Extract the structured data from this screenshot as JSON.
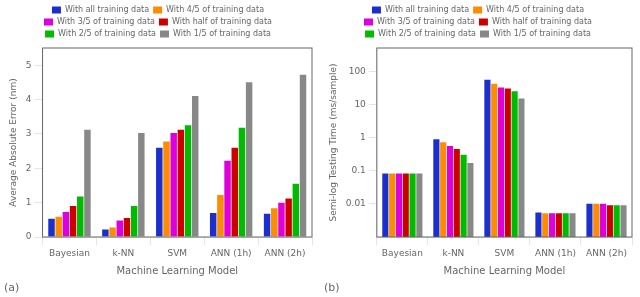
{
  "chart_data": [
    {
      "type": "bar",
      "categories": [
        "Bayesian",
        "k-NN",
        "SVM",
        "ANN (1h)",
        "ANN (2h)"
      ],
      "series": [
        {
          "name": "With all training data",
          "color": "#1a2fcc",
          "values": [
            0.53,
            0.22,
            2.6,
            0.7,
            0.68
          ]
        },
        {
          "name": "With 4/5 of training data",
          "color": "#ff8c00",
          "values": [
            0.59,
            0.28,
            2.78,
            1.22,
            0.84
          ]
        },
        {
          "name": "With 3/5 of training data",
          "color": "#dd00dd",
          "values": [
            0.73,
            0.48,
            3.03,
            2.22,
            1.0
          ]
        },
        {
          "name": "With half of training data",
          "color": "#cc0000",
          "values": [
            0.9,
            0.55,
            3.12,
            2.6,
            1.12
          ]
        },
        {
          "name": "With 2/5 of training data",
          "color": "#00bb00",
          "values": [
            1.18,
            0.9,
            3.25,
            3.18,
            1.55
          ]
        },
        {
          "name": "With 1/5 of training data",
          "color": "#888888",
          "values": [
            3.12,
            3.03,
            4.1,
            4.5,
            4.72
          ]
        }
      ],
      "xlabel": "Machine Learning Model",
      "ylabel": "Average Absolute Error (nm)",
      "ylim": [
        0,
        5.5
      ],
      "yticks": [
        0,
        1,
        2,
        3,
        4,
        5
      ],
      "annotations": [
        "(a)"
      ],
      "legend": "top",
      "grid": false
    },
    {
      "type": "bar",
      "categories": [
        "Bayesian",
        "k-NN",
        "SVM",
        "ANN (1h)",
        "ANN (2h)"
      ],
      "series": [
        {
          "name": "With all training data",
          "color": "#1a2fcc",
          "values": [
            0.082,
            0.88,
            55.0,
            0.0055,
            0.01
          ]
        },
        {
          "name": "With 4/5 of training data",
          "color": "#ff8c00",
          "values": [
            0.082,
            0.72,
            42.0,
            0.0052,
            0.01
          ]
        },
        {
          "name": "With 3/5 of training data",
          "color": "#dd00dd",
          "values": [
            0.082,
            0.55,
            32.0,
            0.0052,
            0.01
          ]
        },
        {
          "name": "With half of training data",
          "color": "#cc0000",
          "values": [
            0.082,
            0.45,
            30.0,
            0.0052,
            0.009
          ]
        },
        {
          "name": "With 2/5 of training data",
          "color": "#00bb00",
          "values": [
            0.082,
            0.3,
            25.0,
            0.0052,
            0.009
          ]
        },
        {
          "name": "With 1/5 of training data",
          "color": "#888888",
          "values": [
            0.082,
            0.17,
            15.0,
            0.0052,
            0.009
          ]
        }
      ],
      "xlabel": "Machine Learning Model",
      "ylabel": "Semi-log Testing Time (ms/sample)",
      "log": "y",
      "ylim": [
        0.001,
        500
      ],
      "yticks": [
        0.01,
        0.1,
        1,
        10,
        100
      ],
      "annotations": [
        "(b)"
      ],
      "legend": "top",
      "grid": false
    }
  ]
}
